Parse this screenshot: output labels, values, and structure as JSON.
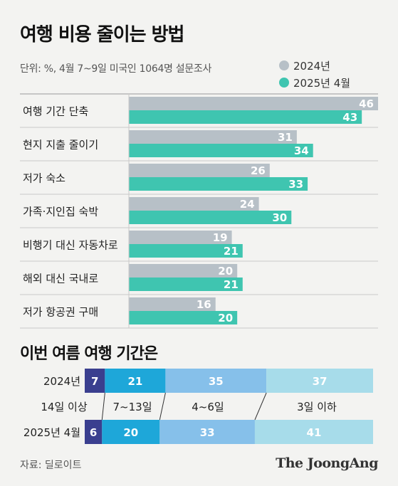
{
  "title": "여행 비용 줄이는 방법",
  "subtitle": "단위: %, 4월 7~9일 미국인 1064명 설문조사",
  "legend": [
    {
      "label": "2024년",
      "color": "#b7c0c7"
    },
    {
      "label": "2025년 4월",
      "color": "#3fc5b0"
    }
  ],
  "section2_title": "이번 여름 여행 기간은",
  "source": "자료: 딜로이트",
  "brand": "The JoongAng",
  "chart_data": [
    {
      "type": "bar",
      "orientation": "horizontal",
      "categories": [
        "여행 기간 단축",
        "현지 지출 줄이기",
        "저가 숙소",
        "가족·지인집 숙박",
        "비행기 대신 자동차로",
        "해외 대신 국내로",
        "저가 항공권 구매"
      ],
      "series": [
        {
          "name": "2024년",
          "values": [
            46,
            31,
            26,
            24,
            19,
            20,
            16
          ],
          "color": "#b7c0c7"
        },
        {
          "name": "2025년 4월",
          "values": [
            43,
            34,
            33,
            30,
            21,
            21,
            20
          ],
          "color": "#3fc5b0"
        }
      ],
      "xlim": [
        0,
        46
      ]
    },
    {
      "type": "bar",
      "orientation": "horizontal",
      "stacked": true,
      "unit": "%",
      "rows": [
        "2024년",
        "2025년 4월"
      ],
      "categories": [
        "14일 이상",
        "7~13일",
        "4~6일",
        "3일 이하"
      ],
      "colors": [
        "#3a3f8f",
        "#1ea7d9",
        "#86c0ea",
        "#a7dcea"
      ],
      "values": [
        [
          7,
          21,
          35,
          37
        ],
        [
          6,
          20,
          33,
          41
        ]
      ]
    }
  ]
}
